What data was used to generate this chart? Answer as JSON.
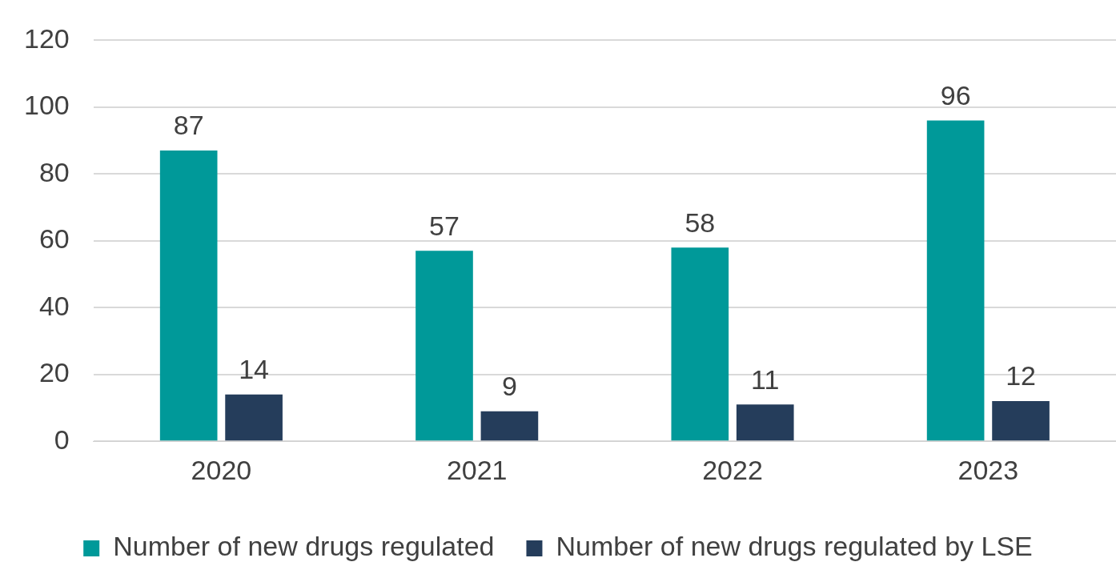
{
  "chart_data": {
    "type": "bar",
    "categories": [
      "2020",
      "2021",
      "2022",
      "2023"
    ],
    "series": [
      {
        "name": "Number of new drugs regulated",
        "color": "#009999",
        "values": [
          87,
          57,
          58,
          96
        ]
      },
      {
        "name": "Number of new drugs regulated by LSE",
        "color": "#253d5b",
        "values": [
          14,
          9,
          11,
          12
        ]
      }
    ],
    "ylim": [
      0,
      120
    ],
    "yticks": [
      0,
      20,
      40,
      60,
      80,
      100,
      120
    ],
    "grid": "y",
    "legend": "bottom",
    "data_labels": true
  }
}
